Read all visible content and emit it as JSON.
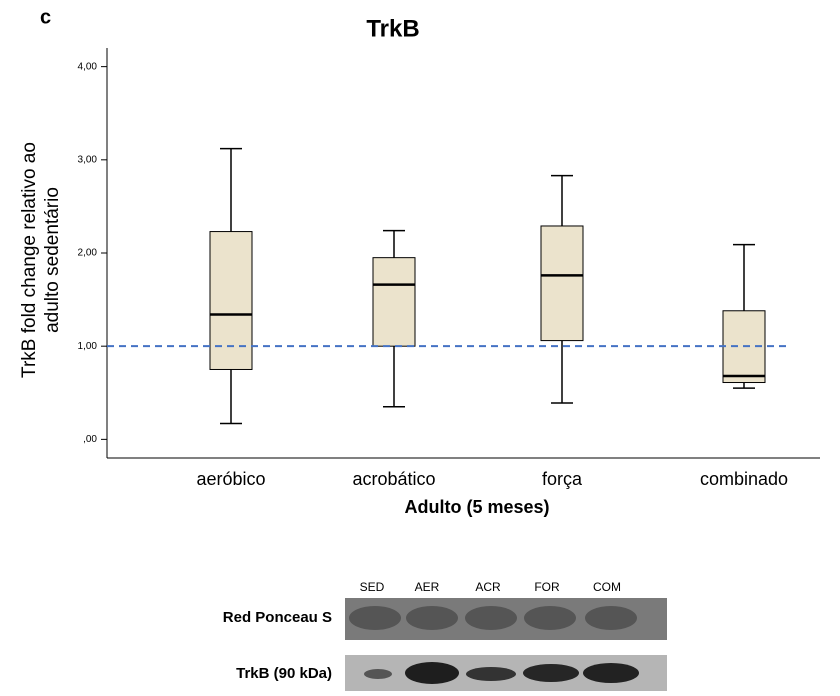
{
  "panel_label": "c",
  "chart_data": {
    "type": "box",
    "title": "TrkB",
    "ylabel": [
      "TrkB fold change relativo ao",
      "adulto  sedentário"
    ],
    "xlabel": "Adulto (5 meses)",
    "categories": [
      "aeróbico",
      "acrobático",
      "força",
      "combinado"
    ],
    "min": [
      0.17,
      0.35,
      0.39,
      0.55
    ],
    "q1": [
      0.75,
      1.0,
      1.06,
      0.61
    ],
    "median": [
      1.34,
      1.66,
      1.76,
      0.68
    ],
    "q3": [
      2.23,
      1.95,
      2.29,
      1.38
    ],
    "max": [
      3.12,
      2.24,
      2.83,
      2.09
    ],
    "color": "#ebe3cc",
    "reference_line": {
      "value": 1,
      "color": "#4472c4"
    },
    "ylim": [
      -0.2,
      4.2
    ],
    "yticks": [
      {
        "value": 0,
        "label": ",00"
      },
      {
        "value": 1,
        "label": "1,00"
      },
      {
        "value": 2,
        "label": "2,00"
      },
      {
        "value": 3,
        "label": "3,00"
      },
      {
        "value": 4,
        "label": "4,00"
      }
    ]
  },
  "blot": {
    "lanes": [
      "SED",
      "AER",
      "ACR",
      "FOR",
      "COM"
    ],
    "rows": [
      "Red Ponceau S",
      "TrkB (90 kDa)"
    ]
  }
}
